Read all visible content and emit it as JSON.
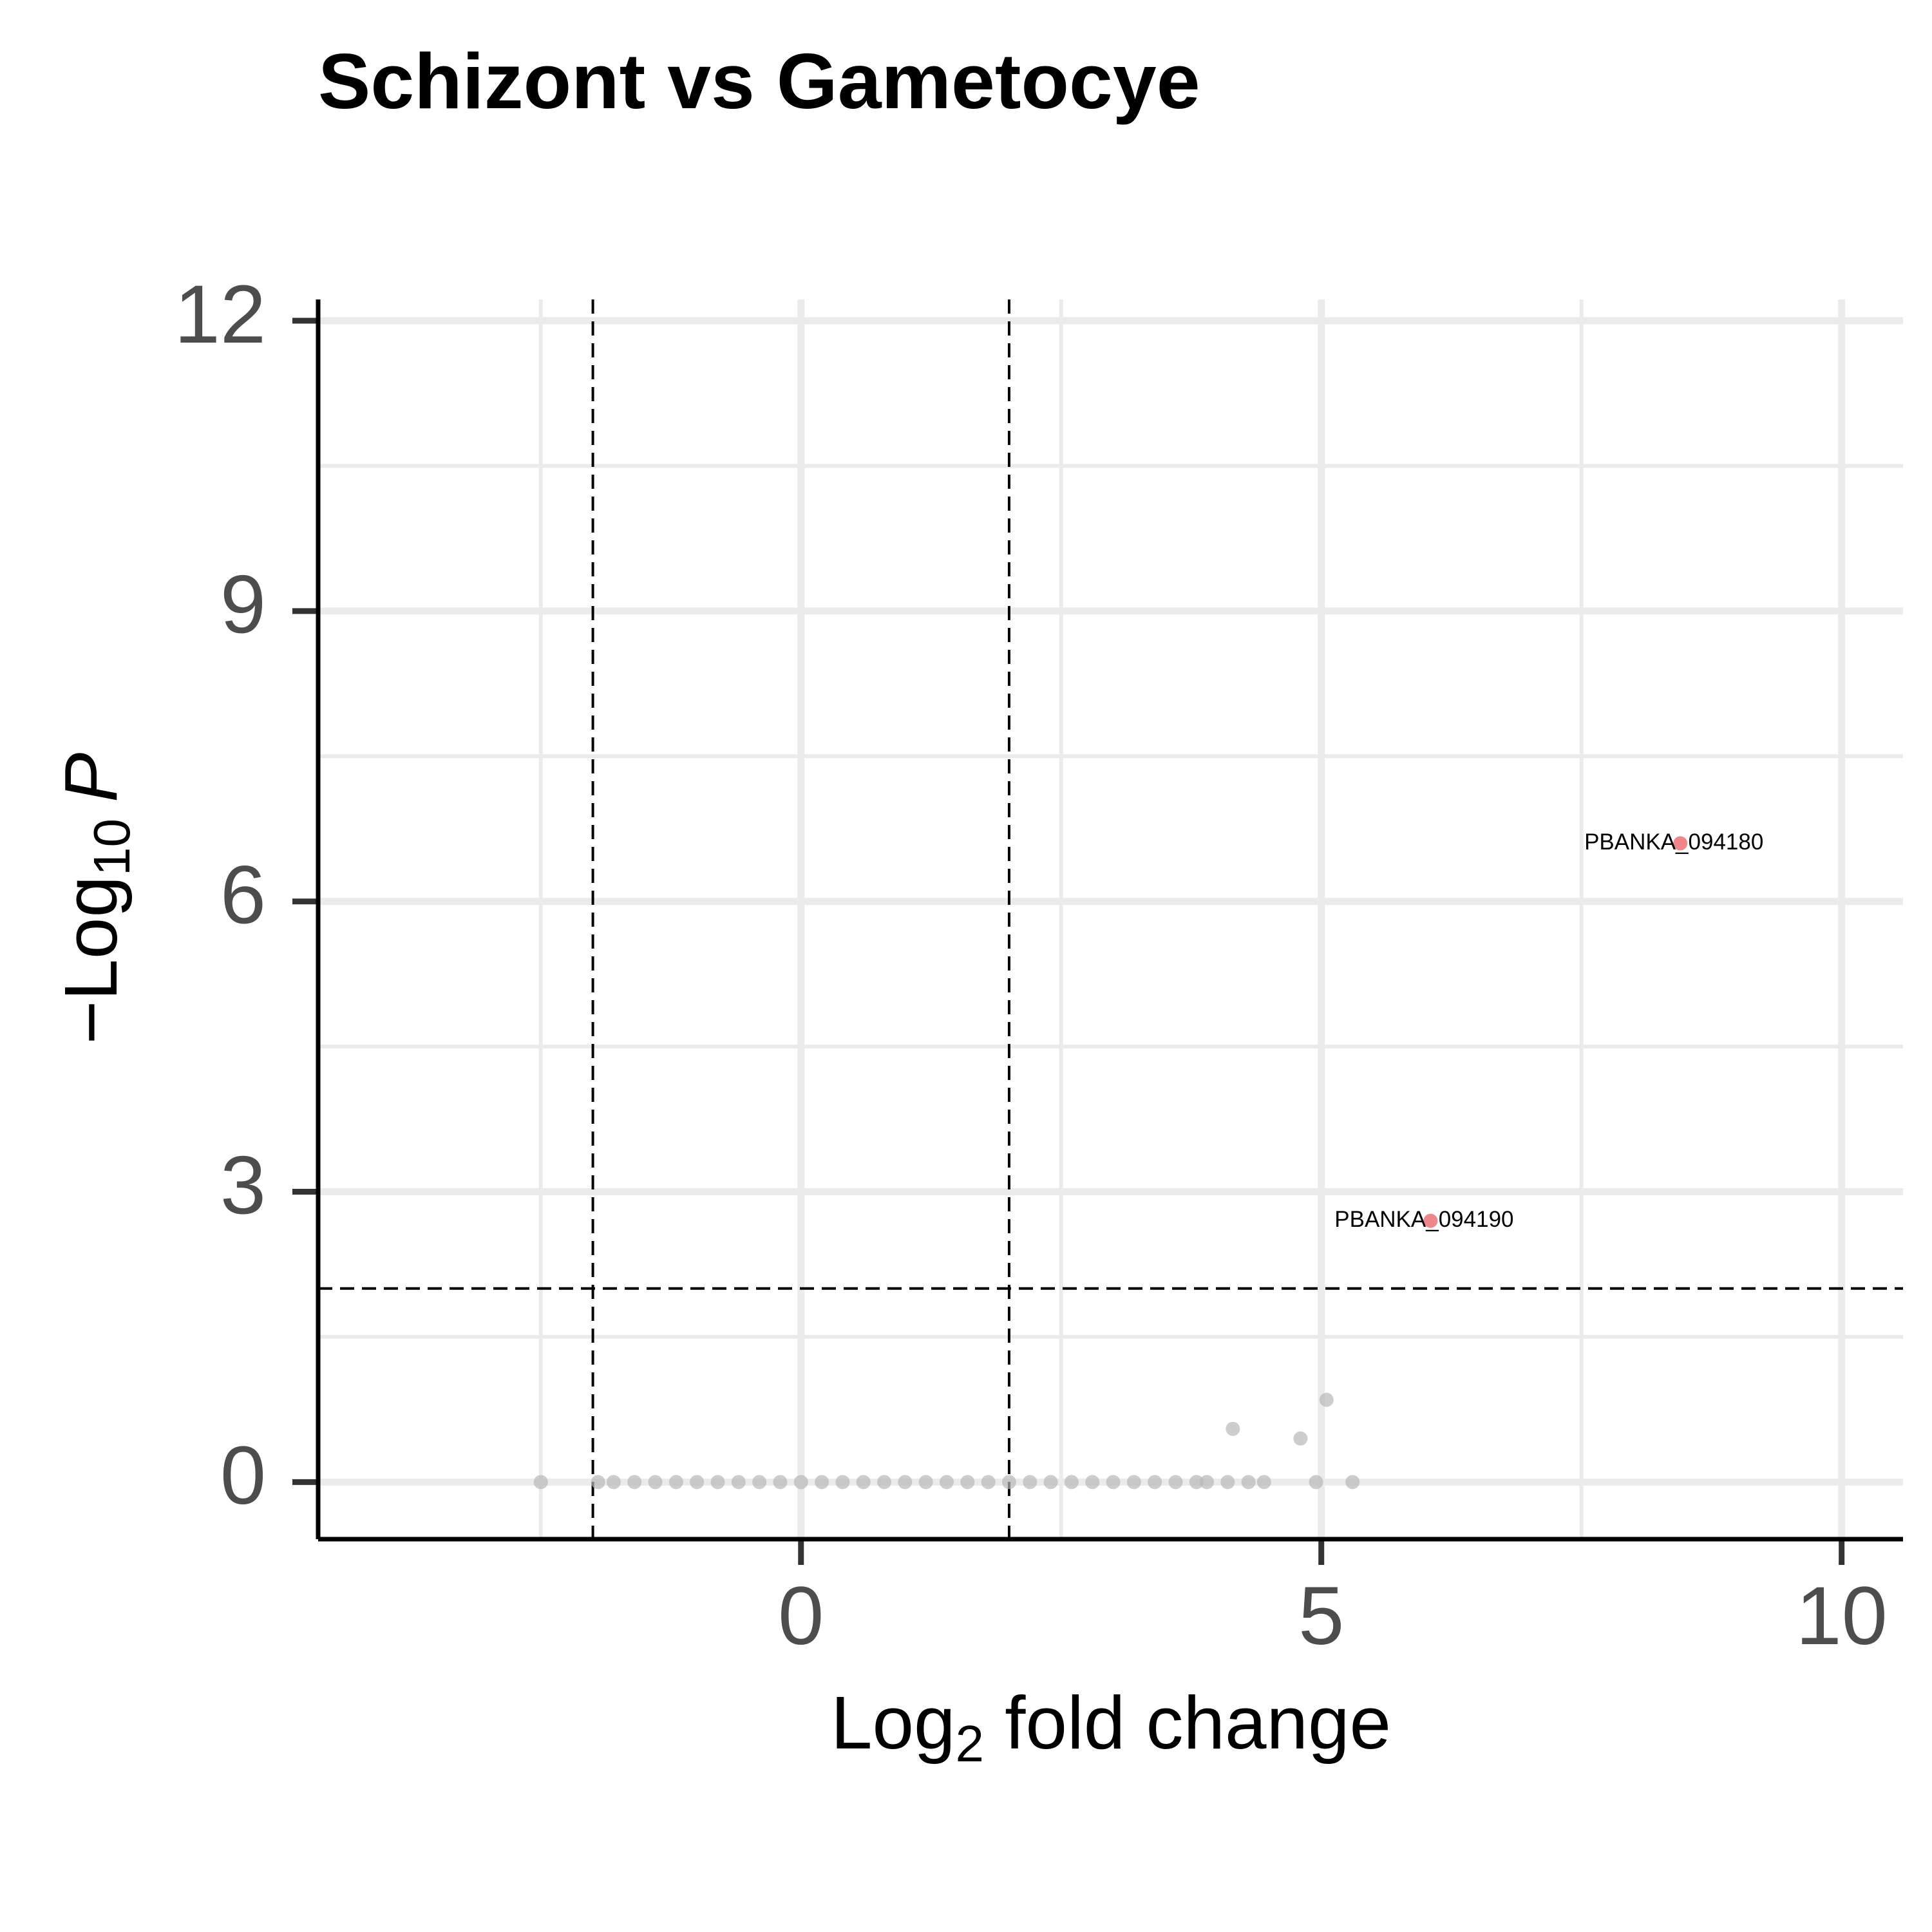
{
  "chart_data": {
    "type": "scatter",
    "title": "Schizont vs Gametocye",
    "x_label": {
      "base": "Log",
      "sub": "2",
      "rest": " fold change"
    },
    "y_label": {
      "base": "−Log",
      "sub": "10",
      "rest": "P"
    },
    "xlim": [
      -4.64,
      10.59
    ],
    "ylim": [
      -0.59,
      12.22
    ],
    "xticks": [
      0,
      5,
      10
    ],
    "yticks": [
      0,
      3,
      6,
      9,
      12
    ],
    "xminor": [
      -2.5,
      2.5,
      7.5
    ],
    "yminor": [
      1.5,
      4.5,
      7.5,
      10.5
    ],
    "grid": true,
    "vlines": [
      -2,
      2
    ],
    "hline": 2,
    "series": [
      {
        "color": "#b8b8b8",
        "x": [
          -2.5,
          -1.95,
          -1.8,
          -1.6,
          -1.4,
          -1.2,
          -1.0,
          -0.8,
          -0.6,
          -0.4,
          -0.2,
          0,
          0.2,
          0.4,
          0.6,
          0.8,
          1.0,
          1.2,
          1.4,
          1.6,
          1.8,
          2.0,
          2.2,
          2.4,
          2.6,
          2.8,
          3.0,
          3.2,
          3.4,
          3.6,
          3.8,
          3.9,
          4.1,
          4.3,
          4.45,
          4.95,
          5.3,
          4.15,
          4.8,
          5.05
        ],
        "values": [
          0,
          0,
          0,
          0,
          0,
          0,
          0,
          0,
          0,
          0,
          0,
          0,
          0,
          0,
          0,
          0,
          0,
          0,
          0,
          0,
          0,
          0,
          0,
          0,
          0,
          0,
          0,
          0,
          0,
          0,
          0,
          0,
          0,
          0,
          0,
          0,
          0,
          0.55,
          0.45,
          0.85
        ]
      },
      {
        "color": "#e8525a",
        "x": [
          8.45,
          6.05
        ],
        "values": [
          6.6,
          2.7
        ],
        "point_labels": [
          "PBANKA_094180",
          "PBANKA_094190"
        ]
      }
    ]
  }
}
